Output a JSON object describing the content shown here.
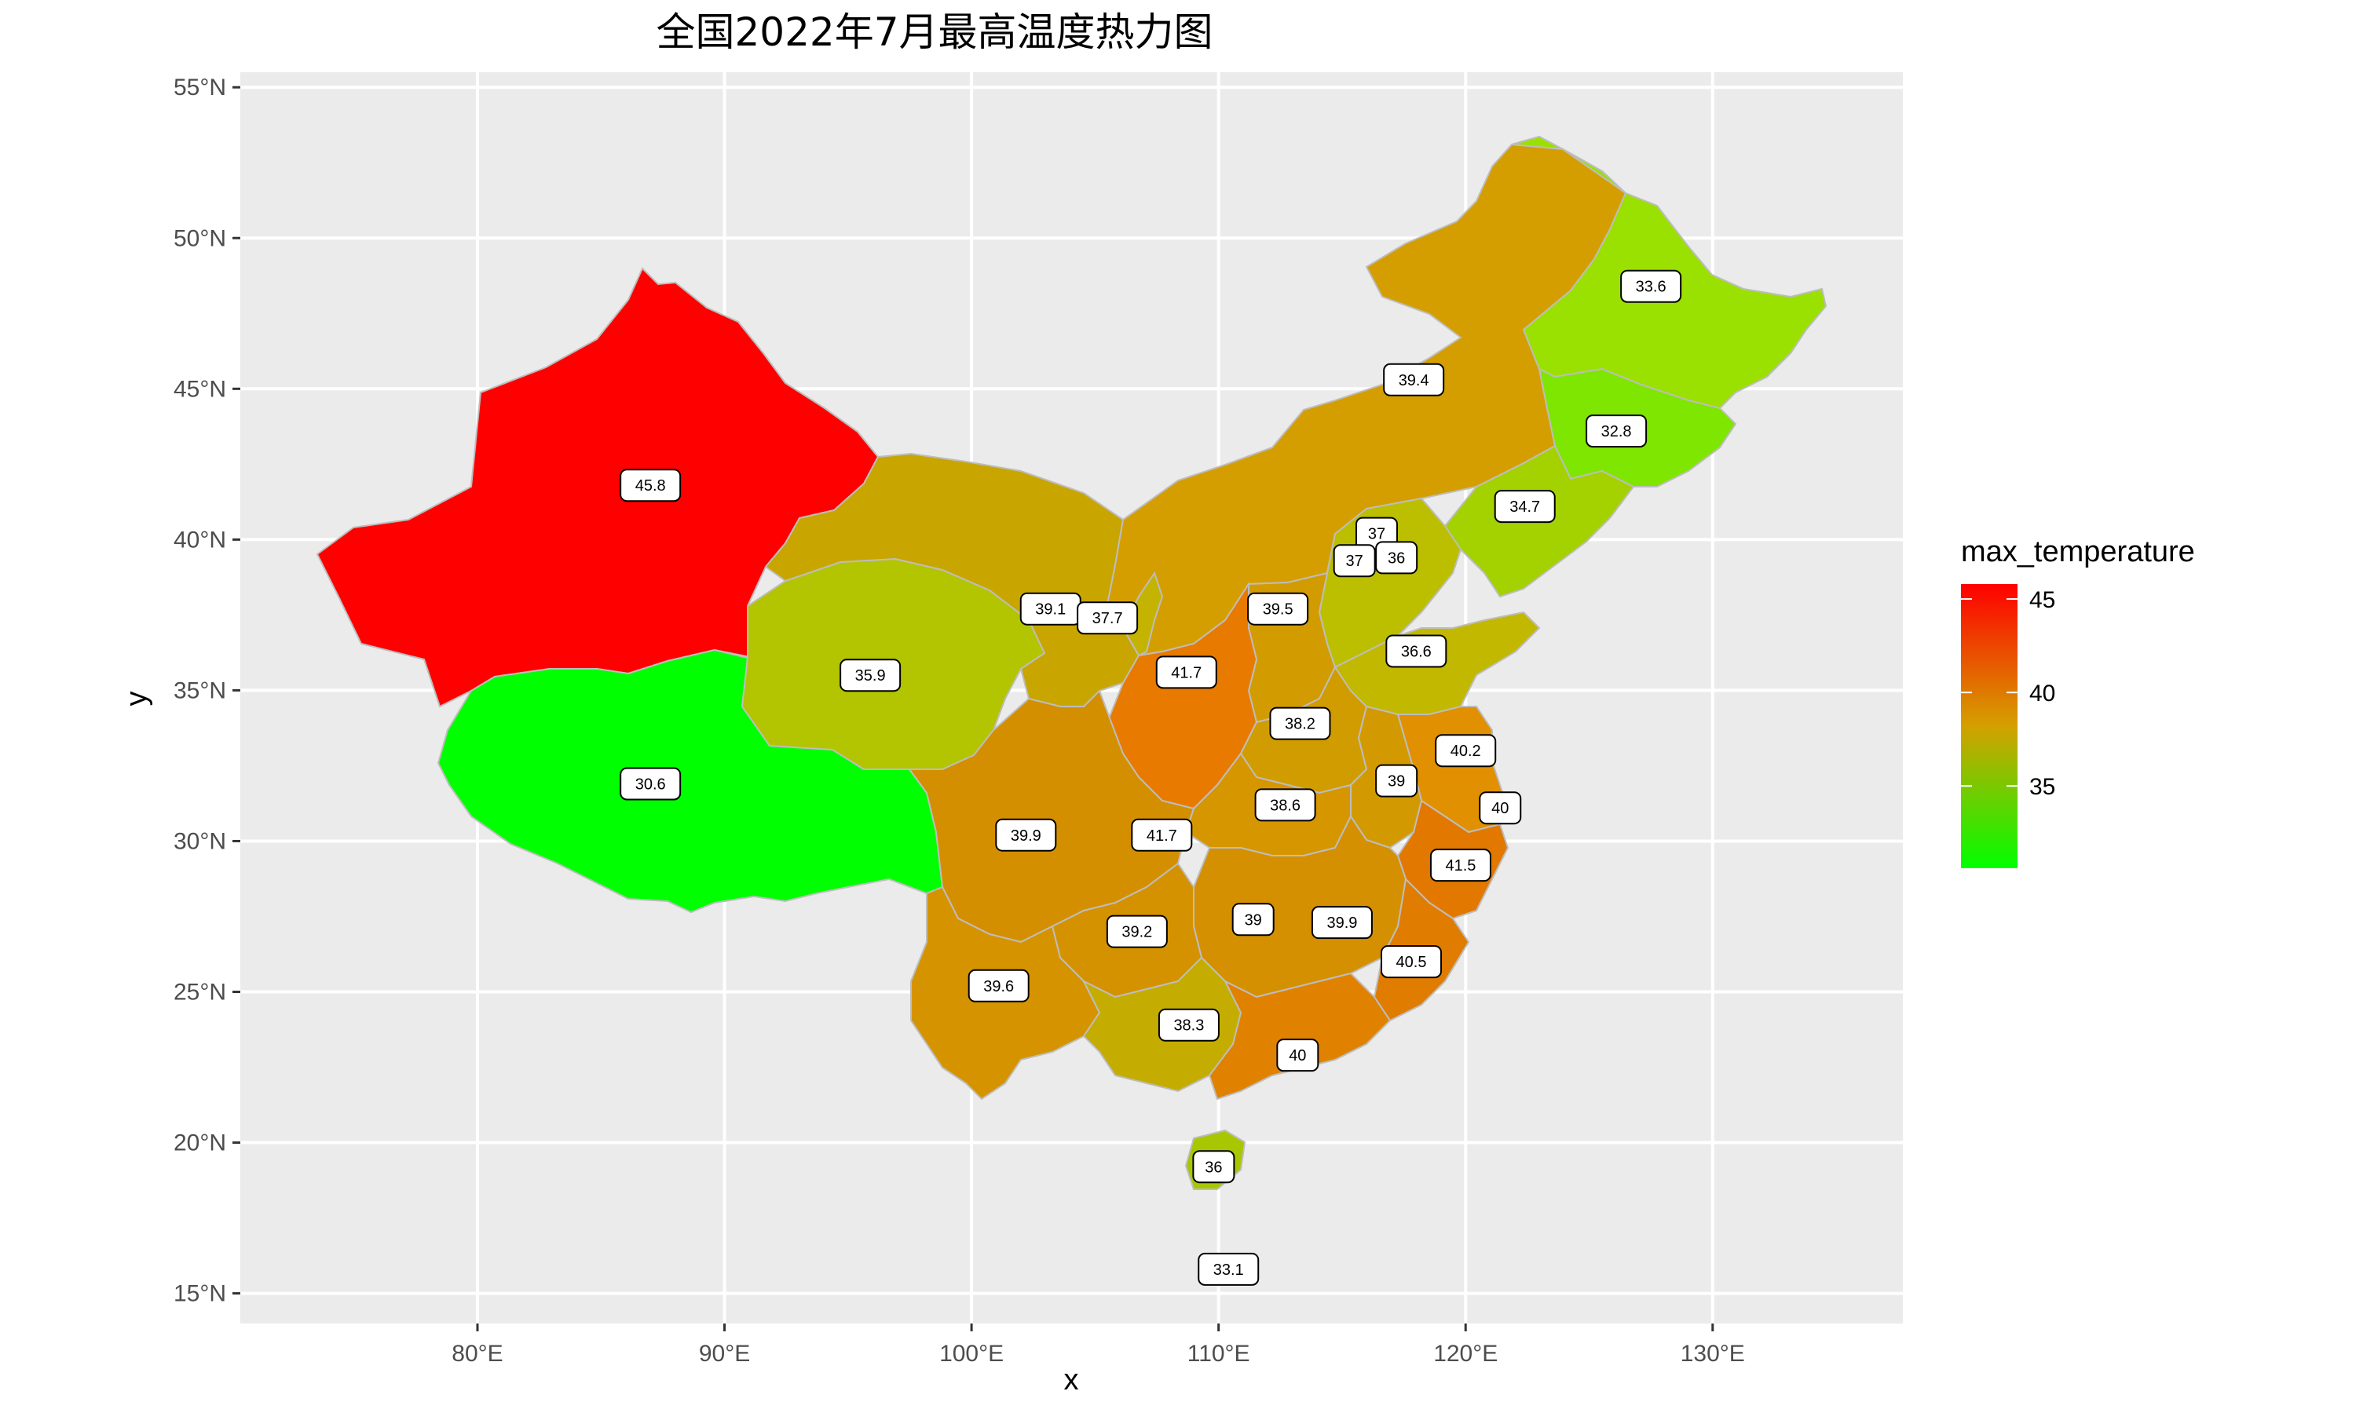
{
  "chart_data": {
    "type": "choropleth-map",
    "title": "全国2022年7月最高温度热力图",
    "xlabel": "x",
    "ylabel": "y",
    "x_ticks": [
      "80°E",
      "90°E",
      "100°E",
      "110°E",
      "120°E",
      "130°E"
    ],
    "x_tick_values": [
      80,
      90,
      100,
      110,
      120,
      130
    ],
    "y_ticks": [
      "15°N",
      "20°N",
      "25°N",
      "30°N",
      "35°N",
      "40°N",
      "45°N",
      "50°N",
      "55°N"
    ],
    "y_tick_values": [
      15,
      20,
      25,
      30,
      35,
      40,
      45,
      50,
      55
    ],
    "xlim": [
      70.4,
      137.7
    ],
    "ylim": [
      14.0,
      55.5
    ],
    "grid": true,
    "legend": {
      "title": "max_temperature",
      "ticks": [
        45,
        40,
        35
      ],
      "min": 30.6,
      "max": 45.8,
      "colors": {
        "low": "#00ff00",
        "mid": "#d4a000",
        "high": "#ff0000"
      },
      "position": "right"
    },
    "colors": {
      "panel": "#ebebeb",
      "grid": "#ffffff",
      "border": "#bdbdbd"
    },
    "regions": [
      {
        "label": "45.8",
        "value": 45.8,
        "lon": 87.0,
        "lat": 41.8
      },
      {
        "label": "30.6",
        "value": 30.6,
        "lon": 87.0,
        "lat": 31.9
      },
      {
        "label": "35.9",
        "value": 35.9,
        "lon": 95.9,
        "lat": 35.5
      },
      {
        "label": "39.9",
        "value": 39.9,
        "lon": 102.2,
        "lat": 30.2
      },
      {
        "label": "39.6",
        "value": 39.6,
        "lon": 101.1,
        "lat": 25.2
      },
      {
        "label": "39.1",
        "value": 39.1,
        "lon": 103.2,
        "lat": 37.7
      },
      {
        "label": "37.7",
        "value": 37.7,
        "lon": 105.5,
        "lat": 37.4
      },
      {
        "label": "39.4",
        "value": 39.4,
        "lon": 117.9,
        "lat": 45.3
      },
      {
        "label": "41.7",
        "value": 41.7,
        "lon": 108.7,
        "lat": 35.6
      },
      {
        "label": "41.7",
        "value": 41.7,
        "lon": 107.7,
        "lat": 30.2
      },
      {
        "label": "39.2",
        "value": 39.2,
        "lon": 106.7,
        "lat": 27.0
      },
      {
        "label": "38.3",
        "value": 38.3,
        "lon": 108.8,
        "lat": 23.9
      },
      {
        "label": "36",
        "value": 36.0,
        "lon": 109.8,
        "lat": 19.2
      },
      {
        "label": "33.1",
        "value": 33.1,
        "lon": 110.4,
        "lat": 15.8
      },
      {
        "label": "39.5",
        "value": 39.5,
        "lon": 112.4,
        "lat": 37.7
      },
      {
        "label": "38.2",
        "value": 38.2,
        "lon": 113.3,
        "lat": 33.9
      },
      {
        "label": "38.6",
        "value": 38.6,
        "lon": 112.7,
        "lat": 31.2
      },
      {
        "label": "39",
        "value": 39.0,
        "lon": 111.4,
        "lat": 27.4
      },
      {
        "label": "40",
        "value": 40.0,
        "lon": 113.2,
        "lat": 22.9
      },
      {
        "label": "39.9",
        "value": 39.9,
        "lon": 115.0,
        "lat": 27.3
      },
      {
        "label": "40.5",
        "value": 40.5,
        "lon": 117.8,
        "lat": 26.0
      },
      {
        "label": "41.5",
        "value": 41.5,
        "lon": 119.8,
        "lat": 29.2
      },
      {
        "label": "40",
        "value": 40.0,
        "lon": 121.4,
        "lat": 31.1
      },
      {
        "label": "40.2",
        "value": 40.2,
        "lon": 120.0,
        "lat": 33.0
      },
      {
        "label": "39",
        "value": 39.0,
        "lon": 117.2,
        "lat": 32.0
      },
      {
        "label": "36.6",
        "value": 36.6,
        "lon": 118.0,
        "lat": 36.3
      },
      {
        "label": "37",
        "value": 37.0,
        "lon": 116.4,
        "lat": 40.2
      },
      {
        "label": "37",
        "value": 37.0,
        "lon": 115.5,
        "lat": 39.3
      },
      {
        "label": "36",
        "value": 36.0,
        "lon": 117.2,
        "lat": 39.4
      },
      {
        "label": "34.7",
        "value": 34.7,
        "lon": 122.4,
        "lat": 41.1
      },
      {
        "label": "32.8",
        "value": 32.8,
        "lon": 126.1,
        "lat": 43.6
      },
      {
        "label": "33.6",
        "value": 33.6,
        "lon": 127.5,
        "lat": 48.4
      }
    ]
  }
}
